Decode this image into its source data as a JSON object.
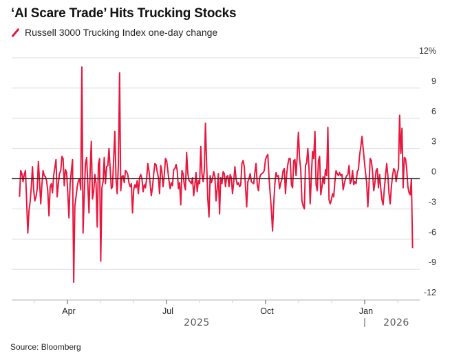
{
  "title": "‘AI Scare Trade’ Hits Trucking Stocks",
  "legend": [
    {
      "label": "Russell 3000 Trucking Index one-day change",
      "color": "#e8173e",
      "icon": "diagonal-line-icon"
    }
  ],
  "source": "Source: Bloomberg",
  "chart_data": {
    "type": "line",
    "title": "‘AI Scare Trade’ Hits Trucking Stocks",
    "xlabel": "",
    "ylabel": "",
    "y_unit": "%",
    "ylim": [
      -12,
      12
    ],
    "yticks": [
      12,
      9,
      6,
      3,
      0,
      -3,
      -6,
      -9,
      -12
    ],
    "ytick_labels": [
      "12%",
      "9",
      "6",
      "3",
      "0",
      "-3",
      "-6",
      "-9",
      "-12"
    ],
    "y_axis_side": "right",
    "grid": true,
    "zero_line": true,
    "x_range_months": [
      1.5,
      13.5
    ],
    "xticks": [
      {
        "label": "Apr",
        "month": 3
      },
      {
        "label": "Jul",
        "month": 6
      },
      {
        "label": "Oct",
        "month": 9
      },
      {
        "label": "Jan",
        "month": 12
      }
    ],
    "minor_ticks_months": [
      2,
      4,
      5,
      7,
      8,
      10,
      11,
      13
    ],
    "year_labels": [
      {
        "label": "2025",
        "month": 7.2
      },
      {
        "label": "2026",
        "month": 12.3,
        "divider": true
      }
    ],
    "series": [
      {
        "name": "Russell 3000 Trucking Index one-day change",
        "color": "#e8173e",
        "x_start_month": 1.55,
        "x_end_month": 13.45,
        "values": [
          -1.8,
          0.8,
          0.5,
          -0.3,
          0.4,
          0.8,
          -2.2,
          -5.4,
          -3.2,
          -2.3,
          -0.8,
          1.2,
          -1.1,
          -2.2,
          -1.8,
          -1.0,
          1.7,
          -0.3,
          -2.5,
          -0.6,
          0.8,
          0.3,
          0.2,
          -0.2,
          -1.2,
          -3.7,
          -0.8,
          -0.5,
          -1.4,
          0.3,
          1.1,
          1.9,
          -1.8,
          -0.5,
          0.5,
          0.8,
          2.2,
          2.0,
          -0.7,
          0.9,
          0.6,
          -1.4,
          -3.9,
          -0.5,
          0.7,
          1.9,
          -10.3,
          -2.7,
          -1.8,
          -0.8,
          -0.2,
          0.0,
          -1.1,
          11.1,
          -5.4,
          -1.5,
          1.5,
          2.1,
          -0.5,
          -3.4,
          0.7,
          3.7,
          -2.0,
          -1.3,
          0.4,
          -0.5,
          -4.8,
          1.4,
          2.0,
          -8.2,
          -0.9,
          -0.3,
          2.1,
          -0.5,
          1.2,
          1.3,
          3.0,
          1.0,
          -1.0,
          -0.8,
          2.0,
          4.7,
          0.0,
          -1.5,
          1.5,
          10.5,
          -1.2,
          0.2,
          0.3,
          -0.4,
          0.8,
          0.7,
          0.4,
          -0.4,
          -0.8,
          -0.5,
          -3.4,
          -1.1,
          -0.6,
          -0.9,
          -0.2,
          -1.5,
          0.1,
          0.4,
          0.0,
          -1.3,
          -0.6,
          -0.9,
          0.0,
          1.5,
          0.8,
          -0.5,
          -1.7,
          -0.8,
          0.5,
          1.5,
          1.4,
          0.7,
          0.1,
          -1.5,
          1.3,
          0.7,
          -0.8,
          0.4,
          2.0,
          1.8,
          0.8,
          -0.2,
          -1.0,
          -0.4,
          -0.7,
          0.9,
          1.0,
          1.4,
          0.8,
          -1.0,
          -0.4,
          -2.6,
          0.8,
          0.5,
          -0.6,
          -1.1,
          2.6,
          0.5,
          -0.2,
          -0.3,
          -0.5,
          0.1,
          -1.7,
          -0.6,
          0.6,
          -1.3,
          -0.2,
          -0.5,
          3.2,
          0.5,
          -0.3,
          0.8,
          5.5,
          1.5,
          -2.0,
          -3.8,
          0.3,
          -0.4,
          0.0,
          0.7,
          0.2,
          -2.2,
          -1.0,
          0.5,
          -3.5,
          0.1,
          -0.5,
          0.7,
          0.5,
          -0.8,
          0.2,
          0.3,
          -0.8,
          0.4,
          0.1,
          -1.5,
          -0.3,
          1.2,
          0.0,
          -0.6,
          -0.4,
          -0.8,
          -0.6,
          1.5,
          1.8,
          1.2,
          -0.8,
          -2.8,
          -0.3,
          0.0,
          0.5,
          -0.3,
          -0.4,
          -0.5,
          0.6,
          1.5,
          -0.6,
          -1.2,
          0.1,
          0.4,
          0.5,
          0.6,
          0.8,
          1.9,
          2.2,
          2.4,
          0.1,
          -1.5,
          -3.1,
          -5.2,
          -2.5,
          -0.5,
          0.6,
          0.2,
          0.3,
          -1.0,
          -0.4,
          0.0,
          0.8,
          1.0,
          -1.5,
          0.4,
          1.4,
          2.0,
          2.0,
          -0.6,
          -0.9,
          1.8,
          1.9,
          0.3,
          2.4,
          4.6,
          2.0,
          0.9,
          -2.2,
          -2.7,
          -3.0,
          1.3,
          1.6,
          3.0,
          1.0,
          -2.5,
          0.2,
          2.7,
          2.0,
          4.7,
          -0.6,
          -1.2,
          1.8,
          2.2,
          -1.6,
          -0.8,
          0.2,
          -0.5,
          0.9,
          0.3,
          5.1,
          -2.1,
          -2.5,
          -2.1,
          -1.5,
          -1.8,
          -0.3,
          0.8,
          0.5,
          0.3,
          0.6,
          0.3,
          0.4,
          -1.1,
          -0.5,
          0.0,
          0.3,
          0.4,
          1.3,
          -0.5,
          -0.2,
          0.8,
          -0.6,
          -0.3,
          -0.5,
          0.7,
          0.9,
          2.3,
          3.2,
          4.2,
          3.0,
          1.8,
          0.6,
          -0.4,
          -2.8,
          -0.6,
          2.0,
          1.8,
          0.6,
          -1.2,
          -0.4,
          0.8,
          1.0,
          -0.9,
          0.4,
          -1.0,
          -2.1,
          -2.6,
          -1.0,
          0.3,
          1.5,
          0.3,
          -1.5,
          -2.5,
          -0.8,
          0.3,
          1.0,
          0.8,
          -0.3,
          0.5,
          1.0,
          6.3,
          2.5,
          5.0,
          -0.9,
          2.1,
          2.0,
          1.0,
          -0.8,
          -1.4,
          -1.6,
          0.0,
          -6.9
        ]
      }
    ]
  }
}
